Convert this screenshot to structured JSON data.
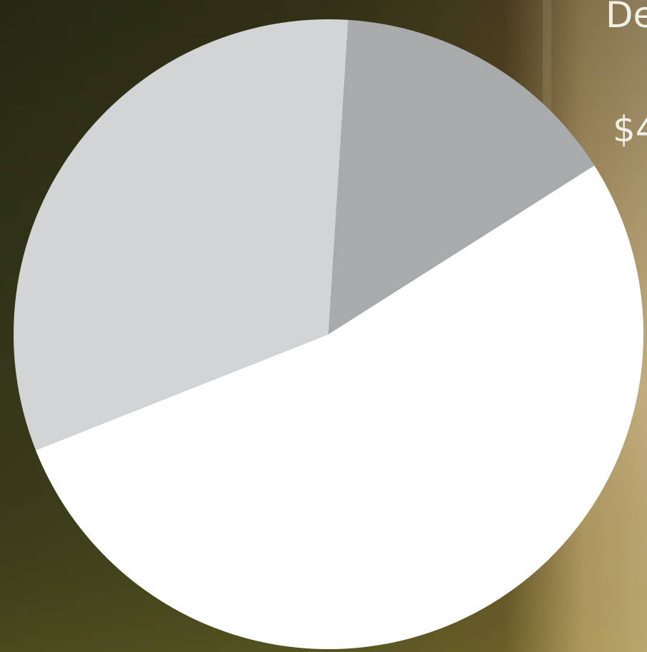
{
  "chart_data": {
    "type": "pie",
    "values": [
      15,
      53,
      32
    ],
    "colors": [
      "#a9aaac",
      "#ffffff",
      "#d3d4d6"
    ],
    "annotations": [
      "De",
      "$4"
    ]
  }
}
